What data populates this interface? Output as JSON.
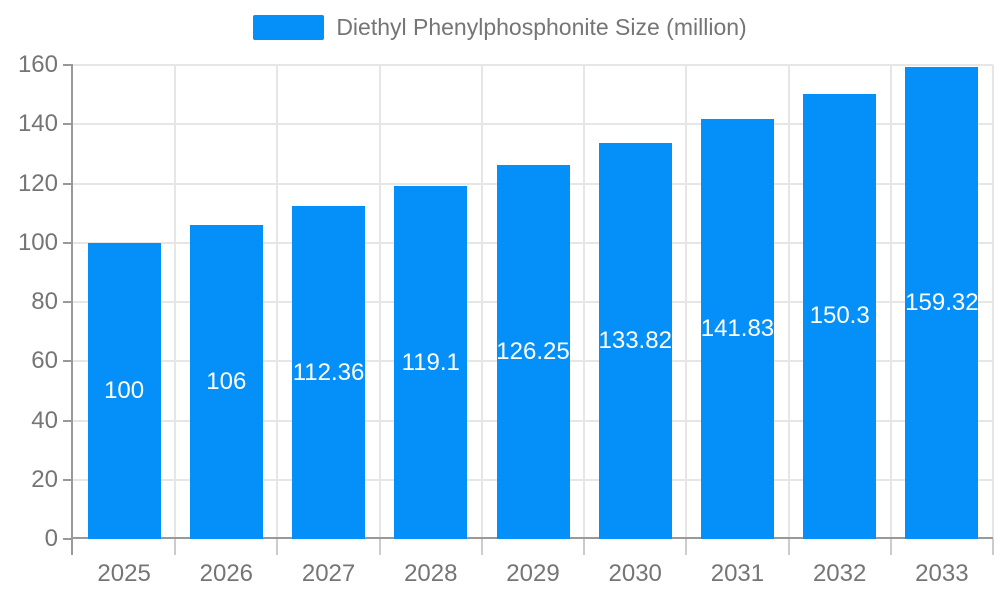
{
  "chart_data": {
    "type": "bar",
    "title": "",
    "categories": [
      "2025",
      "2026",
      "2027",
      "2028",
      "2029",
      "2030",
      "2031",
      "2032",
      "2033"
    ],
    "series": [
      {
        "name": "Diethyl Phenylphosphonite Size (million)",
        "values": [
          100,
          106,
          112.36,
          119.1,
          126.25,
          133.82,
          141.83,
          150.3,
          159.32
        ]
      }
    ],
    "value_labels": [
      "100",
      "106",
      "112.36",
      "119.1",
      "126.25",
      "133.82",
      "141.83",
      "150.3",
      "159.32"
    ],
    "xlabel": "",
    "ylabel": "",
    "ylim": [
      0,
      160
    ],
    "yticks": [
      0,
      20,
      40,
      60,
      80,
      100,
      120,
      140,
      160
    ],
    "grid": true,
    "legend_position": "top-center"
  },
  "colors": {
    "bar": "#0590f9",
    "bar_label_text": "#ffffff",
    "axis_line": "#999999",
    "x_tick": "#cccccc",
    "grid_line": "#e6e6e6",
    "axis_label_text": "#757575",
    "legend_text": "#757575",
    "background": "#ffffff"
  }
}
